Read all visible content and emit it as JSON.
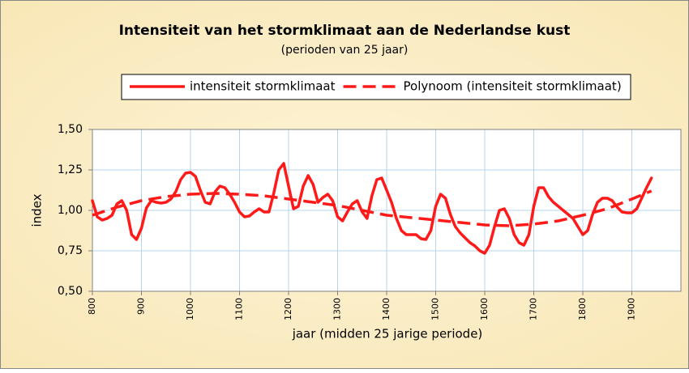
{
  "chart_data": {
    "type": "line",
    "title": "Intensiteit van het stormklimaat aan de Nederlandse kust",
    "subtitle": "(perioden van 25 jaar)",
    "xlabel": "jaar (midden 25 jarige periode)",
    "ylabel": "index",
    "xlim": [
      800,
      2000
    ],
    "xticks": [
      800,
      900,
      1000,
      1100,
      1200,
      1300,
      1400,
      1500,
      1600,
      1700,
      1800,
      1900
    ],
    "ylim": [
      0.5,
      1.5
    ],
    "yticks": [
      {
        "value": 0.5,
        "label": "0,50"
      },
      {
        "value": 0.75,
        "label": "0,75"
      },
      {
        "value": 1.0,
        "label": "1,00"
      },
      {
        "value": 1.25,
        "label": "1,25"
      },
      {
        "value": 1.5,
        "label": "1,50"
      }
    ],
    "grid": true,
    "series": [
      {
        "name": "intensiteit stormklimaat",
        "color": "#ff1a1a",
        "dash": false,
        "x": [
          800,
          810,
          820,
          830,
          840,
          850,
          860,
          870,
          880,
          890,
          900,
          910,
          920,
          930,
          940,
          950,
          960,
          970,
          980,
          990,
          1000,
          1010,
          1020,
          1030,
          1040,
          1050,
          1060,
          1070,
          1080,
          1090,
          1100,
          1110,
          1120,
          1130,
          1140,
          1150,
          1160,
          1170,
          1180,
          1190,
          1200,
          1210,
          1220,
          1230,
          1240,
          1250,
          1260,
          1270,
          1280,
          1290,
          1300,
          1310,
          1320,
          1330,
          1340,
          1350,
          1360,
          1370,
          1380,
          1390,
          1400,
          1410,
          1420,
          1430,
          1440,
          1450,
          1460,
          1470,
          1480,
          1490,
          1500,
          1510,
          1520,
          1530,
          1540,
          1550,
          1560,
          1570,
          1580,
          1590,
          1600,
          1610,
          1620,
          1630,
          1640,
          1650,
          1660,
          1670,
          1680,
          1690,
          1700,
          1710,
          1720,
          1730,
          1740,
          1750,
          1760,
          1770,
          1780,
          1790,
          1800,
          1810,
          1820,
          1830,
          1840,
          1850,
          1860,
          1870,
          1880,
          1890,
          1900,
          1910,
          1920,
          1930,
          1940
        ],
        "values": [
          1.06,
          0.96,
          0.94,
          0.95,
          0.97,
          1.04,
          1.06,
          1.0,
          0.85,
          0.82,
          0.89,
          1.015,
          1.06,
          1.05,
          1.045,
          1.05,
          1.07,
          1.115,
          1.19,
          1.23,
          1.235,
          1.21,
          1.125,
          1.05,
          1.04,
          1.115,
          1.15,
          1.14,
          1.1,
          1.05,
          0.99,
          0.96,
          0.965,
          0.99,
          1.01,
          0.99,
          0.99,
          1.11,
          1.25,
          1.29,
          1.15,
          1.01,
          1.025,
          1.15,
          1.215,
          1.16,
          1.05,
          1.08,
          1.1,
          1.06,
          0.96,
          0.935,
          0.99,
          1.04,
          1.06,
          0.99,
          0.95,
          1.09,
          1.19,
          1.2,
          1.125,
          1.05,
          0.95,
          0.875,
          0.85,
          0.85,
          0.85,
          0.825,
          0.82,
          0.875,
          1.025,
          1.1,
          1.075,
          0.975,
          0.9,
          0.86,
          0.83,
          0.8,
          0.78,
          0.75,
          0.735,
          0.785,
          0.9,
          1.0,
          1.01,
          0.95,
          0.85,
          0.8,
          0.785,
          0.85,
          1.025,
          1.14,
          1.14,
          1.085,
          1.05,
          1.025,
          1.0,
          0.975,
          0.95,
          0.9,
          0.85,
          0.875,
          0.975,
          1.05,
          1.075,
          1.075,
          1.06,
          1.02,
          0.99,
          0.985,
          0.985,
          1.01,
          1.075,
          1.14,
          1.2
        ]
      },
      {
        "name": "Polynoom (intensiteit stormklimaat)",
        "color": "#ff1a1a",
        "dash": true,
        "x": [
          800,
          850,
          900,
          950,
          1000,
          1050,
          1100,
          1150,
          1200,
          1250,
          1300,
          1350,
          1400,
          1450,
          1500,
          1550,
          1600,
          1650,
          1700,
          1750,
          1800,
          1850,
          1900,
          1940
        ],
        "values": [
          0.97,
          1.02,
          1.06,
          1.085,
          1.1,
          1.105,
          1.1,
          1.09,
          1.07,
          1.05,
          1.03,
          1.0,
          0.97,
          0.955,
          0.94,
          0.925,
          0.91,
          0.905,
          0.915,
          0.935,
          0.97,
          1.01,
          1.07,
          1.12
        ]
      }
    ]
  }
}
